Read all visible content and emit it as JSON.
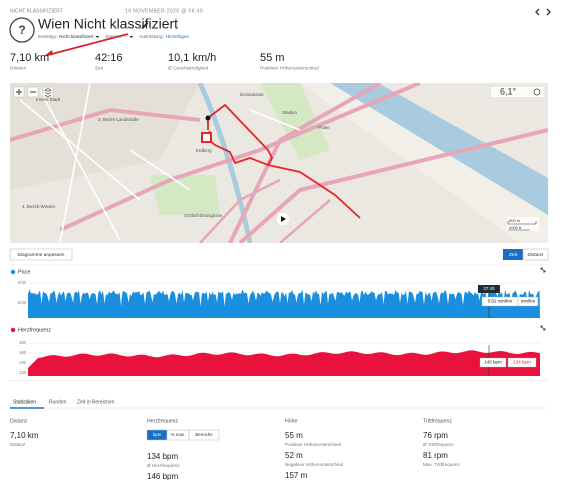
{
  "header": {
    "category": "NICHT KLASSIFIZIERT",
    "date": "19 NOVEMBER 2020 @ 06:49",
    "icon": "?",
    "title": "Wien Nicht klassifiziert",
    "meta": [
      {
        "label": "Eventtyp:",
        "value": "Nicht klassifiziert"
      },
      {
        "label": "Strecke:",
        "value": "--"
      },
      {
        "label": "Ausrüstung:",
        "value": "Hinzufügen"
      }
    ]
  },
  "summary": [
    {
      "value": "7,10 km",
      "label": "Distanz"
    },
    {
      "value": "42:16",
      "label": "Zeit"
    },
    {
      "value": "10,1 km/h",
      "label": "Ø Geschwindigkeit"
    },
    {
      "value": "55 m",
      "label": "Positiver Höhenunterschied"
    }
  ],
  "map": {
    "labels": [
      "Innere Stadt",
      "3. Bezirk-Landstraße",
      "4. Bezirk-Wieden",
      "Stadion",
      "Erdberg",
      "Schlachthausgasse",
      "Donaukanal",
      "Prater"
    ],
    "temperature": "6,1°",
    "scale": [
      "500 m",
      "2000 ft"
    ]
  },
  "chart_controls": {
    "customize": "Diagramme anpassen",
    "modes": [
      "Zeit",
      "Distanz"
    ]
  },
  "pace": {
    "title": "Pace",
    "yticks": [
      "0:00",
      "5:00"
    ],
    "tooltip": {
      "time": "37:45",
      "value": "5:02 min/km",
      "unit": "min/km"
    }
  },
  "heart_rate": {
    "title": "Herzfrequenz",
    "yticks": [
      "180",
      "160",
      "140",
      "120"
    ],
    "tooltip": {
      "value": "145 bpm",
      "average": "134 bpm"
    }
  },
  "tabs": [
    "Statistiken",
    "Runden",
    "Zeit in Bereichen"
  ],
  "stats": {
    "distance": {
      "title": "Distanz",
      "items": [
        {
          "value": "7,10 km",
          "label": "Distanz"
        }
      ]
    },
    "heart_rate": {
      "title": "Herzfrequenz",
      "buttons": [
        "bpm",
        "% max.",
        "Bereiche"
      ],
      "items": [
        {
          "value": "134 bpm",
          "label": "Ø Herzfrequenz"
        },
        {
          "value": "146 bpm"
        }
      ]
    },
    "elevation": {
      "title": "Höhe",
      "items": [
        {
          "value": "55 m",
          "label": "Positiver Höhenunterschied"
        },
        {
          "value": "52 m",
          "label": "Negativer Höhenunterschied"
        },
        {
          "value": "157 m"
        }
      ]
    },
    "cadence": {
      "title": "Trittfrequenz",
      "items": [
        {
          "value": "76 rpm",
          "label": "Ø Trittfrequenz"
        },
        {
          "value": "81 rpm",
          "label": "Max. Trittfrequenz"
        }
      ]
    }
  }
}
